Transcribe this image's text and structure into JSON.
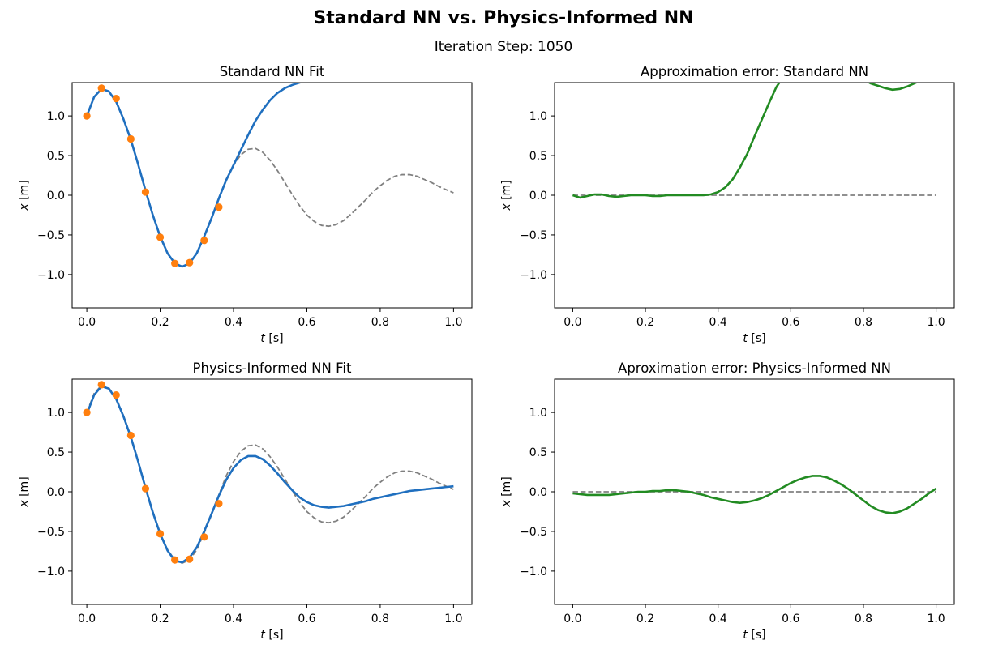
{
  "figure": {
    "title": "Standard NN vs. Physics-Informed NN",
    "subtitle": "Iteration Step: 1050"
  },
  "colors": {
    "nn_fit": "#1f6fbf",
    "exact": "#808080",
    "training_points": "#ff7f0e",
    "error": "#228b22"
  },
  "chart_data": [
    {
      "type": "line",
      "title": "Standard NN Fit",
      "xlabel": "t [s]",
      "ylabel": "x [m]",
      "xlim": [
        -0.04,
        1.05
      ],
      "ylim": [
        -1.42,
        1.42
      ],
      "xticks": [
        0.0,
        0.2,
        0.4,
        0.6,
        0.8,
        1.0
      ],
      "xtick_labels": [
        "0.0",
        "0.2",
        "0.4",
        "0.6",
        "0.8",
        "1.0"
      ],
      "yticks": [
        -1.0,
        -0.5,
        0.0,
        0.5,
        1.0
      ],
      "ytick_labels": [
        "−1.0",
        "−0.5",
        "0.0",
        "0.5",
        "1.0"
      ],
      "grid": false,
      "legend": "none",
      "series": [
        {
          "style": "dashed",
          "color": "#808080",
          "x": [
            0.0,
            0.02,
            0.04,
            0.06,
            0.08,
            0.1,
            0.12,
            0.14,
            0.16,
            0.18,
            0.2,
            0.22,
            0.24,
            0.26,
            0.28,
            0.3,
            0.32,
            0.34,
            0.36,
            0.38,
            0.4,
            0.42,
            0.44,
            0.46,
            0.48,
            0.5,
            0.52,
            0.54,
            0.56,
            0.58,
            0.6,
            0.62,
            0.64,
            0.66,
            0.68,
            0.7,
            0.72,
            0.74,
            0.76,
            0.78,
            0.8,
            0.82,
            0.84,
            0.86,
            0.88,
            0.9,
            0.92,
            0.94,
            0.96,
            0.98,
            1.0
          ],
          "y": [
            1.0,
            1.24,
            1.34,
            1.31,
            1.18,
            0.96,
            0.7,
            0.39,
            0.06,
            -0.25,
            -0.52,
            -0.73,
            -0.86,
            -0.9,
            -0.86,
            -0.73,
            -0.52,
            -0.29,
            -0.04,
            0.2,
            0.38,
            0.51,
            0.58,
            0.59,
            0.54,
            0.44,
            0.31,
            0.16,
            0.01,
            -0.13,
            -0.25,
            -0.33,
            -0.38,
            -0.39,
            -0.37,
            -0.32,
            -0.24,
            -0.15,
            -0.06,
            0.04,
            0.12,
            0.19,
            0.24,
            0.26,
            0.26,
            0.24,
            0.2,
            0.16,
            0.11,
            0.07,
            0.03
          ]
        },
        {
          "style": "solid",
          "color": "#1f6fbf",
          "x": [
            0.0,
            0.02,
            0.04,
            0.06,
            0.08,
            0.1,
            0.12,
            0.14,
            0.16,
            0.18,
            0.2,
            0.22,
            0.24,
            0.26,
            0.28,
            0.3,
            0.32,
            0.34,
            0.36,
            0.38,
            0.4,
            0.42,
            0.44,
            0.46,
            0.48,
            0.5,
            0.52,
            0.54,
            0.56,
            0.58,
            0.6,
            0.62,
            0.64
          ],
          "y": [
            1.0,
            1.24,
            1.34,
            1.31,
            1.18,
            0.96,
            0.7,
            0.39,
            0.06,
            -0.25,
            -0.52,
            -0.73,
            -0.86,
            -0.9,
            -0.86,
            -0.73,
            -0.52,
            -0.29,
            -0.04,
            0.19,
            0.38,
            0.57,
            0.76,
            0.94,
            1.08,
            1.2,
            1.29,
            1.35,
            1.39,
            1.42,
            1.44,
            1.46,
            1.47
          ]
        },
        {
          "style": "points",
          "color": "#ff7f0e",
          "x": [
            0.0,
            0.04,
            0.08,
            0.12,
            0.16,
            0.2,
            0.24,
            0.28,
            0.32,
            0.36
          ],
          "y": [
            1.0,
            1.35,
            1.22,
            0.71,
            0.04,
            -0.53,
            -0.86,
            -0.85,
            -0.57,
            -0.15
          ]
        }
      ]
    },
    {
      "type": "line",
      "title": "Approximation error: Standard NN",
      "xlabel": "t [s]",
      "ylabel": "x [m]",
      "xlim": [
        -0.05,
        1.05
      ],
      "ylim": [
        -1.42,
        1.42
      ],
      "xticks": [
        0.0,
        0.2,
        0.4,
        0.6,
        0.8,
        1.0
      ],
      "xtick_labels": [
        "0.0",
        "0.2",
        "0.4",
        "0.6",
        "0.8",
        "1.0"
      ],
      "yticks": [
        -1.0,
        -0.5,
        0.0,
        0.5,
        1.0
      ],
      "ytick_labels": [
        "−1.0",
        "−0.5",
        "0.0",
        "0.5",
        "1.0"
      ],
      "grid": false,
      "legend": "none",
      "series": [
        {
          "style": "dashed",
          "color": "#808080",
          "x": [
            0.0,
            1.0
          ],
          "y": [
            0.0,
            0.0
          ]
        },
        {
          "style": "solid",
          "color": "#228b22",
          "x": [
            0.0,
            0.02,
            0.04,
            0.06,
            0.08,
            0.1,
            0.12,
            0.14,
            0.16,
            0.18,
            0.2,
            0.22,
            0.24,
            0.26,
            0.28,
            0.3,
            0.32,
            0.34,
            0.36,
            0.38,
            0.4,
            0.42,
            0.44,
            0.46,
            0.48,
            0.5,
            0.52,
            0.54,
            0.56,
            0.58,
            0.6,
            0.78,
            0.8,
            0.82,
            0.84,
            0.86,
            0.88,
            0.9,
            0.92,
            0.94,
            0.96
          ],
          "y": [
            0.0,
            -0.03,
            -0.01,
            0.01,
            0.01,
            -0.01,
            -0.02,
            -0.01,
            0.0,
            0.0,
            0.0,
            -0.01,
            -0.01,
            0.0,
            0.0,
            0.0,
            0.0,
            0.0,
            0.0,
            0.01,
            0.04,
            0.1,
            0.2,
            0.35,
            0.52,
            0.74,
            0.95,
            1.16,
            1.36,
            1.5,
            1.6,
            1.55,
            1.46,
            1.41,
            1.38,
            1.35,
            1.33,
            1.34,
            1.37,
            1.41,
            1.45
          ]
        }
      ]
    },
    {
      "type": "line",
      "title": "Physics-Informed NN Fit",
      "xlabel": "t [s]",
      "ylabel": "x [m]",
      "xlim": [
        -0.04,
        1.05
      ],
      "ylim": [
        -1.42,
        1.42
      ],
      "xticks": [
        0.0,
        0.2,
        0.4,
        0.6,
        0.8,
        1.0
      ],
      "xtick_labels": [
        "0.0",
        "0.2",
        "0.4",
        "0.6",
        "0.8",
        "1.0"
      ],
      "yticks": [
        -1.0,
        -0.5,
        0.0,
        0.5,
        1.0
      ],
      "ytick_labels": [
        "−1.0",
        "−0.5",
        "0.0",
        "0.5",
        "1.0"
      ],
      "grid": false,
      "legend": "none",
      "series": [
        {
          "style": "dashed",
          "color": "#808080",
          "x": [
            0.0,
            0.02,
            0.04,
            0.06,
            0.08,
            0.1,
            0.12,
            0.14,
            0.16,
            0.18,
            0.2,
            0.22,
            0.24,
            0.26,
            0.28,
            0.3,
            0.32,
            0.34,
            0.36,
            0.38,
            0.4,
            0.42,
            0.44,
            0.46,
            0.48,
            0.5,
            0.52,
            0.54,
            0.56,
            0.58,
            0.6,
            0.62,
            0.64,
            0.66,
            0.68,
            0.7,
            0.72,
            0.74,
            0.76,
            0.78,
            0.8,
            0.82,
            0.84,
            0.86,
            0.88,
            0.9,
            0.92,
            0.94,
            0.96,
            0.98,
            1.0
          ],
          "y": [
            1.0,
            1.24,
            1.34,
            1.31,
            1.18,
            0.96,
            0.7,
            0.39,
            0.06,
            -0.25,
            -0.52,
            -0.73,
            -0.86,
            -0.9,
            -0.86,
            -0.73,
            -0.52,
            -0.29,
            -0.04,
            0.2,
            0.38,
            0.51,
            0.58,
            0.59,
            0.54,
            0.44,
            0.31,
            0.16,
            0.01,
            -0.13,
            -0.25,
            -0.33,
            -0.38,
            -0.39,
            -0.37,
            -0.32,
            -0.24,
            -0.15,
            -0.06,
            0.04,
            0.12,
            0.19,
            0.24,
            0.26,
            0.26,
            0.24,
            0.2,
            0.16,
            0.11,
            0.07,
            0.03
          ]
        },
        {
          "style": "solid",
          "color": "#1f6fbf",
          "x": [
            0.0,
            0.02,
            0.04,
            0.06,
            0.08,
            0.1,
            0.12,
            0.14,
            0.16,
            0.18,
            0.2,
            0.22,
            0.24,
            0.26,
            0.28,
            0.3,
            0.32,
            0.34,
            0.36,
            0.38,
            0.4,
            0.42,
            0.44,
            0.46,
            0.48,
            0.5,
            0.52,
            0.54,
            0.56,
            0.58,
            0.6,
            0.62,
            0.64,
            0.66,
            0.68,
            0.7,
            0.72,
            0.74,
            0.76,
            0.78,
            0.8,
            0.82,
            0.84,
            0.86,
            0.88,
            0.9,
            0.92,
            0.94,
            0.96,
            0.98,
            1.0
          ],
          "y": [
            0.98,
            1.22,
            1.33,
            1.3,
            1.17,
            0.95,
            0.69,
            0.38,
            0.05,
            -0.26,
            -0.53,
            -0.74,
            -0.87,
            -0.89,
            -0.83,
            -0.7,
            -0.5,
            -0.28,
            -0.05,
            0.15,
            0.3,
            0.4,
            0.45,
            0.45,
            0.41,
            0.33,
            0.23,
            0.12,
            0.02,
            -0.07,
            -0.13,
            -0.17,
            -0.19,
            -0.2,
            -0.19,
            -0.18,
            -0.16,
            -0.14,
            -0.12,
            -0.09,
            -0.07,
            -0.05,
            -0.03,
            -0.01,
            0.01,
            0.02,
            0.03,
            0.04,
            0.05,
            0.06,
            0.07
          ]
        },
        {
          "style": "points",
          "color": "#ff7f0e",
          "x": [
            0.0,
            0.04,
            0.08,
            0.12,
            0.16,
            0.2,
            0.24,
            0.28,
            0.32,
            0.36
          ],
          "y": [
            1.0,
            1.35,
            1.22,
            0.71,
            0.04,
            -0.53,
            -0.86,
            -0.85,
            -0.57,
            -0.15
          ]
        }
      ]
    },
    {
      "type": "line",
      "title": "Aproximation error: Physics-Informed NN",
      "xlabel": "t [s]",
      "ylabel": "x [m]",
      "xlim": [
        -0.05,
        1.05
      ],
      "ylim": [
        -1.42,
        1.42
      ],
      "xticks": [
        0.0,
        0.2,
        0.4,
        0.6,
        0.8,
        1.0
      ],
      "xtick_labels": [
        "0.0",
        "0.2",
        "0.4",
        "0.6",
        "0.8",
        "1.0"
      ],
      "yticks": [
        -1.0,
        -0.5,
        0.0,
        0.5,
        1.0
      ],
      "ytick_labels": [
        "−1.0",
        "−0.5",
        "0.0",
        "0.5",
        "1.0"
      ],
      "grid": false,
      "legend": "none",
      "series": [
        {
          "style": "dashed",
          "color": "#808080",
          "x": [
            0.0,
            1.0
          ],
          "y": [
            0.0,
            0.0
          ]
        },
        {
          "style": "solid",
          "color": "#228b22",
          "x": [
            0.0,
            0.02,
            0.04,
            0.06,
            0.08,
            0.1,
            0.12,
            0.14,
            0.16,
            0.18,
            0.2,
            0.22,
            0.24,
            0.26,
            0.28,
            0.3,
            0.32,
            0.34,
            0.36,
            0.38,
            0.4,
            0.42,
            0.44,
            0.46,
            0.48,
            0.5,
            0.52,
            0.54,
            0.56,
            0.58,
            0.6,
            0.62,
            0.64,
            0.66,
            0.68,
            0.7,
            0.72,
            0.74,
            0.76,
            0.78,
            0.8,
            0.82,
            0.84,
            0.86,
            0.88,
            0.9,
            0.92,
            0.94,
            0.96,
            0.98,
            1.0
          ],
          "y": [
            -0.02,
            -0.03,
            -0.04,
            -0.04,
            -0.04,
            -0.04,
            -0.03,
            -0.02,
            -0.01,
            0.0,
            0.0,
            0.01,
            0.01,
            0.02,
            0.02,
            0.01,
            0.0,
            -0.02,
            -0.04,
            -0.07,
            -0.09,
            -0.11,
            -0.13,
            -0.14,
            -0.13,
            -0.11,
            -0.08,
            -0.04,
            0.01,
            0.06,
            0.11,
            0.15,
            0.18,
            0.2,
            0.2,
            0.18,
            0.14,
            0.09,
            0.03,
            -0.04,
            -0.11,
            -0.18,
            -0.23,
            -0.26,
            -0.27,
            -0.25,
            -0.21,
            -0.15,
            -0.09,
            -0.02,
            0.04
          ]
        }
      ]
    }
  ]
}
